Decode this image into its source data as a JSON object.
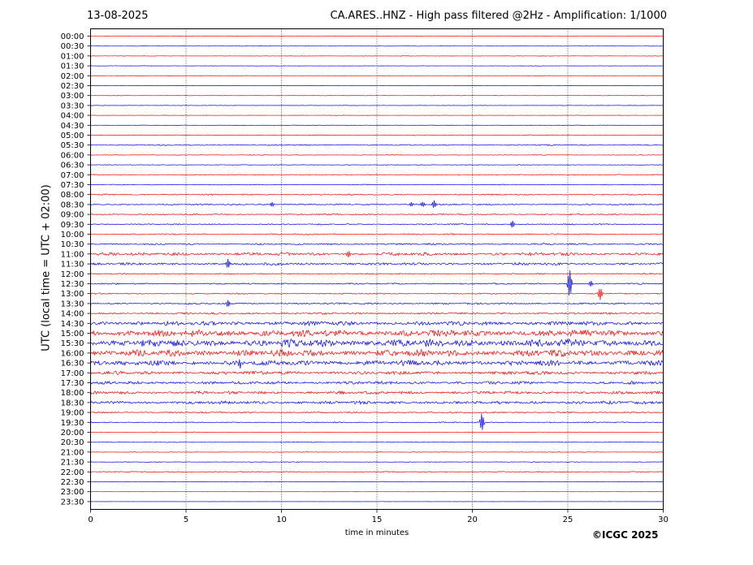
{
  "header": {
    "date": "13-08-2025",
    "title": "CA.ARES..HNZ - High pass filtered @2Hz - Amplification: 1/1000"
  },
  "footer": {
    "copyright": "©ICGC 2025"
  },
  "chart_data": {
    "type": "seismogram",
    "xlabel": "time in minutes",
    "ylabel": "UTC (local time = UTC + 02:00)",
    "xlim": [
      0,
      30
    ],
    "x_ticks": [
      0,
      5,
      10,
      15,
      20,
      25,
      30
    ],
    "grid": "vertical dotted at 5, 10, 15, 20, 25",
    "trace_colors": [
      "#ff0000",
      "#0000ff"
    ],
    "rows": [
      "00:00",
      "00:30",
      "01:00",
      "01:30",
      "02:00",
      "02:30",
      "03:00",
      "03:30",
      "04:00",
      "04:30",
      "05:00",
      "05:30",
      "06:00",
      "06:30",
      "07:00",
      "07:30",
      "08:00",
      "08:30",
      "09:00",
      "09:30",
      "10:00",
      "10:30",
      "11:00",
      "11:30",
      "12:00",
      "12:30",
      "13:00",
      "13:30",
      "14:00",
      "14:30",
      "15:00",
      "15:30",
      "16:00",
      "16:30",
      "17:00",
      "17:30",
      "18:00",
      "18:30",
      "19:00",
      "19:30",
      "20:00",
      "20:30",
      "21:00",
      "21:30",
      "22:00",
      "22:30",
      "23:00",
      "23:30"
    ],
    "row_noise_level": [
      0.2,
      0.2,
      0.2,
      0.2,
      0.2,
      0.2,
      0.2,
      0.2,
      0.2,
      0.2,
      0.4,
      0.5,
      0.3,
      0.3,
      0.4,
      0.4,
      0.6,
      0.7,
      0.6,
      0.6,
      0.6,
      0.8,
      1.5,
      1.2,
      0.6,
      0.7,
      0.6,
      0.8,
      0.9,
      2.0,
      3.2,
      3.6,
      3.2,
      2.6,
      1.6,
      1.4,
      1.4,
      1.5,
      0.7,
      0.5,
      0.3,
      0.3,
      0.3,
      0.3,
      0.5,
      0.3,
      0.1,
      0.1
    ],
    "events": [
      {
        "row": "08:30",
        "minute": 9.5,
        "amplitude": 3
      },
      {
        "row": "08:30",
        "minute": 16.8,
        "amplitude": 3
      },
      {
        "row": "08:30",
        "minute": 17.4,
        "amplitude": 3
      },
      {
        "row": "08:30",
        "minute": 18.0,
        "amplitude": 5
      },
      {
        "row": "09:30",
        "minute": 22.1,
        "amplitude": 5
      },
      {
        "row": "11:00",
        "minute": 13.5,
        "amplitude": 4
      },
      {
        "row": "11:30",
        "minute": 7.2,
        "amplitude": 7
      },
      {
        "row": "12:30",
        "minute": 25.1,
        "amplitude": 18
      },
      {
        "row": "12:30",
        "minute": 26.2,
        "amplitude": 4
      },
      {
        "row": "13:00",
        "minute": 26.7,
        "amplitude": 8
      },
      {
        "row": "13:30",
        "minute": 7.2,
        "amplitude": 4
      },
      {
        "row": "16:30",
        "minute": 7.8,
        "amplitude": 6
      },
      {
        "row": "19:30",
        "minute": 20.5,
        "amplitude": 12
      }
    ]
  }
}
